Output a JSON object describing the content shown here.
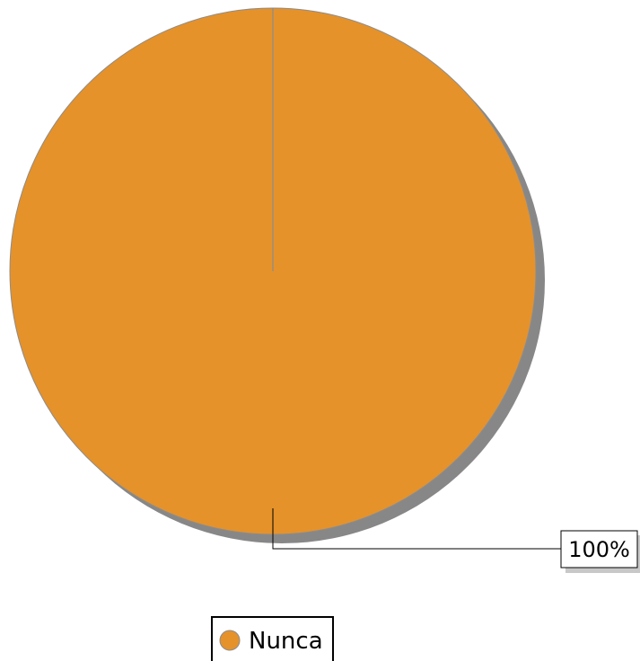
{
  "chart_data": {
    "type": "pie",
    "slices": [
      {
        "label": "Nunca",
        "value": 100,
        "color": "#E5922B"
      }
    ],
    "data_labels": [
      "100%"
    ],
    "legend": {
      "position": "bottom",
      "entries": [
        "Nunca"
      ]
    }
  },
  "colors": {
    "slice_fill": "#E5922B",
    "slice_stroke": "#8C8C8C",
    "shadow": "#878787",
    "leader_line": "#000000"
  }
}
